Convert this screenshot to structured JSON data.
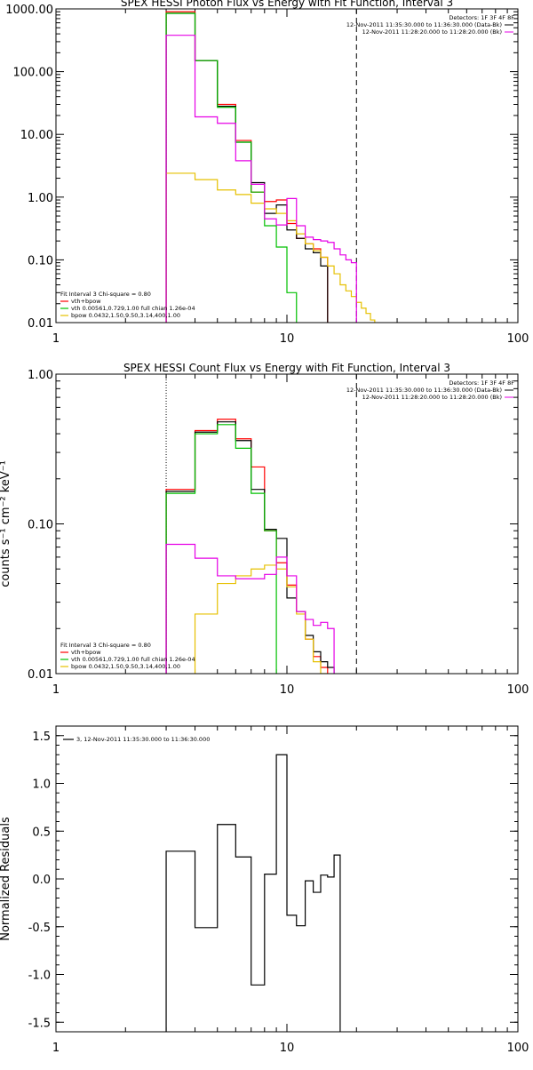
{
  "colors": {
    "total": "#000000",
    "vth_thick": "#ff0000",
    "vth": "#00c000",
    "bpow": "#e6c000",
    "background": "#e600e6",
    "obs": "#000000"
  },
  "chart_data": [
    {
      "type": "line",
      "title": "SPEX HESSI Photon Flux vs Energy with Fit Function, Interval 3",
      "ylabel": "",
      "xlim": [
        1,
        100
      ],
      "ylim": [
        0.01,
        1000
      ],
      "xscale": "log",
      "yscale": "log",
      "xticklabels": [
        "1",
        "10",
        "100"
      ],
      "yticklabels": [
        "0.01",
        "0.10",
        "1.00",
        "10.00",
        "100.00",
        "1000.00"
      ],
      "vlines": [
        3,
        20
      ],
      "header": {
        "detectors": "Detectors: 1F 3F 4F 8F",
        "time": "12-Nov-2011 11:35:30.000 to 11:36:30.000 (Data-Bk)",
        "bk": "12-Nov-2011 11:28:20.000 to 11:28:20.000 (Bk)"
      },
      "legend": {
        "fit": "Fit Interval 3   Chi-square = 0.80",
        "entries": [
          "vth+bpow",
          "vth 0.00561,0.729,1.00   full chian 1.26e-04",
          "bpow 0.0432,1.50,9.50,3.14,400,1.00"
        ]
      },
      "edges": [
        3,
        4,
        5,
        6,
        7,
        8,
        9,
        10,
        11,
        12,
        13,
        14,
        15,
        16,
        17,
        18,
        19,
        20,
        21,
        22,
        23,
        24,
        25,
        26,
        27,
        28,
        29,
        30,
        31
      ],
      "series": [
        {
          "name": "vth+bpow",
          "color_key": "vth_thick",
          "values": [
            900,
            150,
            30,
            8,
            1.2,
            0.85,
            0.9,
            0.38,
            0.22,
            0.18,
            0.15,
            0.11
          ]
        },
        {
          "name": "",
          "color_key": "total",
          "values": [
            850,
            150,
            28,
            7.5,
            1.7,
            0.55,
            0.75,
            0.3,
            0.22,
            0.15,
            0.13,
            0.08
          ]
        },
        {
          "name": "vth",
          "color_key": "vth",
          "values": [
            850,
            150,
            27,
            7.5,
            1.2,
            0.35,
            0.16,
            0.03,
            0.009
          ]
        },
        {
          "name": "bpow",
          "color_key": "bpow",
          "values": [
            2.4,
            1.9,
            1.3,
            1.1,
            0.8,
            0.65,
            0.55,
            0.42,
            0.26,
            0.18,
            0.14,
            0.11,
            0.08,
            0.06,
            0.04,
            0.032,
            0.026,
            0.021,
            0.017,
            0.014,
            0.011,
            0.009
          ]
        },
        {
          "name": "",
          "color_key": "background",
          "values": [
            380,
            19,
            15,
            3.8,
            1.6,
            0.45,
            0.36,
            0.95,
            0.35,
            0.23,
            0.21,
            0.2,
            0.19,
            0.15,
            0.12,
            0.1,
            0.09
          ]
        }
      ]
    },
    {
      "type": "line",
      "title": "SPEX HESSI Count Flux vs Energy with Fit Function, Interval 3",
      "ylabel": "counts s⁻¹ cm⁻² keV⁻¹",
      "xlim": [
        1,
        100
      ],
      "ylim": [
        0.01,
        1.0
      ],
      "xscale": "log",
      "yscale": "log",
      "xticklabels": [
        "1",
        "10",
        "100"
      ],
      "yticklabels": [
        "0.01",
        "0.10",
        "1.00"
      ],
      "vlines": [
        3,
        20
      ],
      "header": {
        "detectors": "Detectors: 1F 3F 4F 8F",
        "time": "12-Nov-2011 11:35:30.000 to 11:36:30.000 (Data-Bk)",
        "bk": "12-Nov-2011 11:28:20.000 to 11:28:20.000 (Bk)"
      },
      "legend": {
        "fit": "Fit Interval 3   Chi-square = 0.80",
        "entries": [
          "vth+bpow",
          "vth 0.00561,0.729,1.00   full chian 1.26e-04",
          "bpow 0.0432,1.50,9.50,3.14,400,1.00"
        ]
      },
      "edges": [
        3,
        4,
        5,
        6,
        7,
        8,
        9,
        10,
        11,
        12,
        13,
        14,
        15,
        16,
        17,
        18,
        19,
        20
      ],
      "series": [
        {
          "name": "vth+bpow",
          "color_key": "vth_thick",
          "values": [
            0.17,
            0.42,
            0.5,
            0.37,
            0.24,
            0.09,
            0.055,
            0.039,
            0.026,
            0.017,
            0.013,
            0.011,
            0.009
          ]
        },
        {
          "name": "",
          "color_key": "total",
          "values": [
            0.165,
            0.41,
            0.48,
            0.36,
            0.17,
            0.092,
            0.08,
            0.032,
            0.026,
            0.018,
            0.014,
            0.012,
            0.011
          ]
        },
        {
          "name": "vth",
          "color_key": "vth",
          "values": [
            0.16,
            0.4,
            0.46,
            0.32,
            0.16,
            0.09,
            0.009
          ]
        },
        {
          "name": "bpow",
          "color_key": "bpow",
          "values": [
            0.009,
            0.025,
            0.04,
            0.045,
            0.05,
            0.053,
            0.05,
            0.038,
            0.025,
            0.017,
            0.012,
            0.01,
            0.008
          ]
        },
        {
          "name": "",
          "color_key": "background",
          "values": [
            0.073,
            0.059,
            0.045,
            0.043,
            0.043,
            0.046,
            0.06,
            0.045,
            0.026,
            0.023,
            0.021,
            0.022,
            0.02
          ]
        }
      ]
    },
    {
      "type": "line",
      "title": "",
      "ylabel": "Normalized Residuals",
      "xlim": [
        1,
        100
      ],
      "ylim": [
        -1.6,
        1.6
      ],
      "xscale": "log",
      "yscale": "linear",
      "xticklabels": [
        "1",
        "10",
        "100"
      ],
      "yticks": [
        -1.5,
        -1.0,
        -0.5,
        0.0,
        0.5,
        1.0,
        1.5
      ],
      "yticklabels": [
        "-1.5",
        "-1.0",
        "-0.5",
        "0.0",
        "0.5",
        "1.0",
        "1.5"
      ],
      "legend": {
        "entries": [
          "3, 12-Nov-2011 11:35:30.000 to 11:36:30.000"
        ]
      },
      "edges": [
        3,
        4,
        5,
        6,
        7,
        8,
        9,
        10,
        11,
        12,
        13,
        14,
        15,
        16,
        17,
        18,
        19,
        20
      ],
      "series": [
        {
          "name": "3, 12-Nov-2011 11:35:30.000 to 11:36:30.000",
          "color_key": "obs",
          "values": [
            0.29,
            -0.51,
            0.57,
            0.23,
            -1.11,
            0.05,
            1.3,
            -0.38,
            -0.49,
            -0.02,
            -0.14,
            0.04,
            0.02,
            0.25
          ]
        }
      ]
    }
  ]
}
